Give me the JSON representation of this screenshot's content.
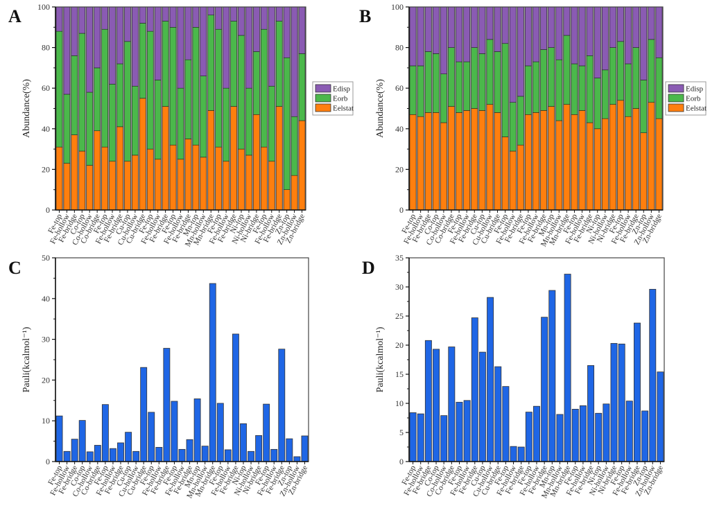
{
  "figure": {
    "panels": [
      "A",
      "B",
      "C",
      "D"
    ]
  },
  "chart_data": [
    {
      "id": "A",
      "type": "bar",
      "stacked": true,
      "panel_label": "A",
      "title": "",
      "xlabel": "",
      "ylabel": "Abundance(%)",
      "ylim": [
        0,
        100
      ],
      "yticks": [
        0,
        20,
        40,
        60,
        80,
        100
      ],
      "legend": {
        "placement": "right",
        "entries": [
          "Edisp",
          "Eorb",
          "Eelstat"
        ]
      },
      "categories": [
        "Fe-top",
        "Fe-hollow",
        "Fe-bridge",
        "Co-top",
        "Co-hollow",
        "Co-bridge",
        "Fe-top",
        "Fe-hollow",
        "Fe-bridge",
        "Cu-top",
        "Cu-hollow",
        "Cu-bridge",
        "Fe-top",
        "Fe-hollow",
        "Fe-bridge",
        "Fe-top",
        "Fe-hollow",
        "Fe-bridge",
        "Mn-top",
        "Mn-hollow",
        "Mn-bridge",
        "Fe-top",
        "Fe-hollow",
        "Fe-bridge",
        "Ni-top",
        "Ni-hollow",
        "Ni-bridge",
        "Fe-top",
        "Fe-hollow",
        "Fe-bridge",
        "Zn-top",
        "Zn-hollow",
        "Zn-bridge"
      ],
      "series": [
        {
          "name": "Eelstat",
          "color": "#ff7f0e",
          "values": [
            31,
            23,
            37,
            29,
            22,
            39,
            31,
            24,
            41,
            24,
            27,
            55,
            30,
            25,
            51,
            32,
            25,
            35,
            32,
            26,
            49,
            31,
            24,
            51,
            30,
            27,
            47,
            31,
            24,
            51,
            10,
            17,
            44
          ]
        },
        {
          "name": "Eorb",
          "color": "#4bb84b",
          "values": [
            57,
            34,
            39,
            58,
            36,
            31,
            58,
            38,
            31,
            59,
            34,
            37,
            58,
            39,
            42,
            58,
            35,
            39,
            58,
            40,
            47,
            58,
            36,
            42,
            56,
            33,
            31,
            58,
            37,
            42,
            65,
            29,
            33
          ]
        },
        {
          "name": "Edisp",
          "color": "#8a5bb3",
          "values": [
            12,
            43,
            24,
            13,
            42,
            30,
            11,
            38,
            28,
            17,
            39,
            8,
            12,
            36,
            7,
            10,
            40,
            26,
            10,
            34,
            4,
            11,
            40,
            7,
            14,
            40,
            22,
            11,
            39,
            7,
            25,
            54,
            23
          ]
        }
      ]
    },
    {
      "id": "B",
      "type": "bar",
      "stacked": true,
      "panel_label": "B",
      "title": "",
      "xlabel": "",
      "ylabel": "Abundance(%)",
      "ylim": [
        0,
        100
      ],
      "yticks": [
        0,
        20,
        40,
        60,
        80,
        100
      ],
      "legend": {
        "placement": "right",
        "entries": [
          "Edisp",
          "Eorb",
          "Eelstat"
        ]
      },
      "categories": [
        "Fe-top",
        "Fe-hollow",
        "Fe-bridge",
        "Co-top",
        "Co-hollow",
        "Co-bridge",
        "Fe-top",
        "Fe-hollow",
        "Fe-bridge",
        "Cu-top",
        "Cu-hollow",
        "Cu-bridge",
        "Fe-top",
        "Fe-hollow",
        "Fe-bridge",
        "Fe-top",
        "Fe-hollow",
        "Fe-bridge",
        "Mn-top",
        "Mn-hollow",
        "Mn-bridge",
        "Fe-top",
        "Fe-hollow",
        "Fe-bridge",
        "Ni-top",
        "Ni-hollow",
        "Ni-bridge",
        "Fe-top",
        "Fe-hollow",
        "Fe-bridge",
        "Zn-top",
        "Zn-hollow",
        "Zn-bridge"
      ],
      "series": [
        {
          "name": "Eelstat",
          "color": "#ff7f0e",
          "values": [
            47,
            46,
            48,
            48,
            43,
            51,
            48,
            49,
            50,
            49,
            52,
            48,
            36,
            29,
            32,
            47,
            48,
            49,
            51,
            44,
            52,
            47,
            49,
            43,
            40,
            45,
            52,
            54,
            46,
            50,
            38,
            53,
            45
          ]
        },
        {
          "name": "Eorb",
          "color": "#4bb84b",
          "values": [
            24,
            25,
            30,
            29,
            24,
            29,
            25,
            24,
            30,
            28,
            32,
            30,
            46,
            24,
            24,
            24,
            25,
            30,
            29,
            30,
            34,
            25,
            22,
            33,
            25,
            24,
            28,
            29,
            26,
            30,
            26,
            31,
            30
          ]
        },
        {
          "name": "Edisp",
          "color": "#8a5bb3",
          "values": [
            29,
            29,
            22,
            23,
            33,
            20,
            27,
            27,
            20,
            23,
            16,
            22,
            18,
            47,
            44,
            29,
            27,
            21,
            20,
            26,
            14,
            28,
            29,
            24,
            35,
            31,
            20,
            17,
            28,
            20,
            36,
            16,
            25
          ]
        }
      ]
    },
    {
      "id": "C",
      "type": "bar",
      "panel_label": "C",
      "title": "",
      "xlabel": "",
      "ylabel": "Pauli(kcalmol⁻¹)",
      "ylim": [
        0,
        50
      ],
      "yticks": [
        0,
        10,
        20,
        30,
        40,
        50
      ],
      "color": "#1f66e5",
      "categories": [
        "Fe-top",
        "Fe-hollow",
        "Fe-bridge",
        "Co-top",
        "Co-hollow",
        "Co-bridge",
        "Fe-top",
        "Fe-hollow",
        "Fe-bridge",
        "Cu-top",
        "Cu-hollow",
        "Cu-bridge",
        "Fe-top",
        "Fe-hollow",
        "Fe-bridge",
        "Fe-top",
        "Fe-hollow",
        "Fe-bridge",
        "Mn-top",
        "Mn-hollow",
        "Mn-bridge",
        "Fe-top",
        "Fe-hollow",
        "Fe-bridge",
        "Ni-top",
        "Ni-hollow",
        "Ni-bridge",
        "Fe-top",
        "Fe-hollow",
        "Fe-bridge",
        "Zn-top",
        "Zn-hollow",
        "Zn-bridge"
      ],
      "values": [
        11.2,
        2.5,
        5.5,
        10.1,
        2.4,
        4.0,
        14.0,
        3.2,
        4.6,
        7.2,
        2.5,
        23.1,
        12.1,
        3.5,
        27.8,
        14.8,
        3.0,
        5.4,
        15.4,
        3.8,
        43.7,
        14.3,
        2.9,
        31.3,
        9.3,
        2.5,
        6.4,
        14.1,
        3.0,
        27.6,
        5.6,
        1.2,
        6.3
      ]
    },
    {
      "id": "D",
      "type": "bar",
      "panel_label": "D",
      "title": "",
      "xlabel": "",
      "ylabel": "Pauli(kcalmol⁻¹)",
      "ylim": [
        0,
        35
      ],
      "yticks": [
        0,
        5,
        10,
        15,
        20,
        25,
        30,
        35
      ],
      "color": "#1f66e5",
      "categories": [
        "Fe-top",
        "Fe-hollow",
        "Fe-bridge",
        "Co-top",
        "Co-hollow",
        "Co-bridge",
        "Fe-top",
        "Fe-hollow",
        "Fe-bridge",
        "Cu-top",
        "Cu-hollow",
        "Cu-bridge",
        "Fe-top",
        "Fe-hollow",
        "Fe-bridge",
        "Fe-top",
        "Fe-hollow",
        "Fe-bridge",
        "Mn-top",
        "Mn-hollow",
        "Mn-bridge",
        "Fe-top",
        "Fe-hollow",
        "Fe-bridge",
        "Ni-top",
        "Ni-hollow",
        "Ni-bridge",
        "Fe-top",
        "Fe-hollow",
        "Fe-bridge",
        "Zn-top",
        "Zn-hollow",
        "Zn-bridge"
      ],
      "values": [
        8.4,
        8.2,
        20.8,
        19.3,
        7.9,
        19.7,
        10.2,
        10.5,
        24.7,
        18.8,
        28.2,
        16.3,
        12.9,
        2.6,
        2.5,
        8.5,
        9.5,
        24.8,
        29.4,
        8.1,
        32.2,
        9.0,
        9.6,
        16.5,
        8.3,
        9.9,
        20.3,
        20.2,
        10.4,
        23.8,
        8.7,
        29.6,
        15.4
      ]
    }
  ]
}
